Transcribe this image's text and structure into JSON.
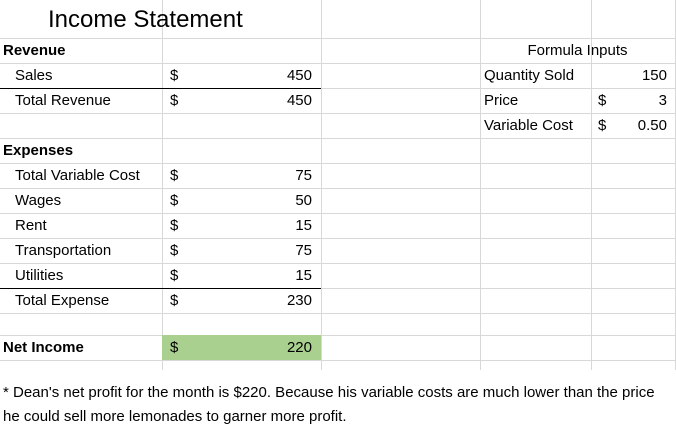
{
  "title": "Income Statement",
  "revenue": {
    "header": "Revenue",
    "rows": [
      {
        "label": "Sales",
        "currency": "$",
        "value": "450"
      },
      {
        "label": "Total Revenue",
        "currency": "$",
        "value": "450"
      }
    ]
  },
  "expenses": {
    "header": "Expenses",
    "rows": [
      {
        "label": "Total Variable Cost",
        "currency": "$",
        "value": "75"
      },
      {
        "label": "Wages",
        "currency": "$",
        "value": "50"
      },
      {
        "label": "Rent",
        "currency": "$",
        "value": "15"
      },
      {
        "label": "Transportation",
        "currency": "$",
        "value": "75"
      },
      {
        "label": "Utilities",
        "currency": "$",
        "value": "15"
      },
      {
        "label": "Total Expense",
        "currency": "$",
        "value": "230"
      }
    ]
  },
  "net_income": {
    "label": "Net Income",
    "currency": "$",
    "value": "220",
    "highlight_color": "#a9d08e"
  },
  "formula_inputs": {
    "header": "Formula Inputs",
    "rows": [
      {
        "label": "Quantity Sold",
        "currency": "",
        "value": "150"
      },
      {
        "label": "Price",
        "currency": "$",
        "value": "3"
      },
      {
        "label": "Variable Cost",
        "currency": "$",
        "value": "0.50"
      }
    ]
  },
  "note": "* Dean's net profit for the month is $220. Because his variable costs are much lower than the price he could sell more lemonades to garner more profit."
}
